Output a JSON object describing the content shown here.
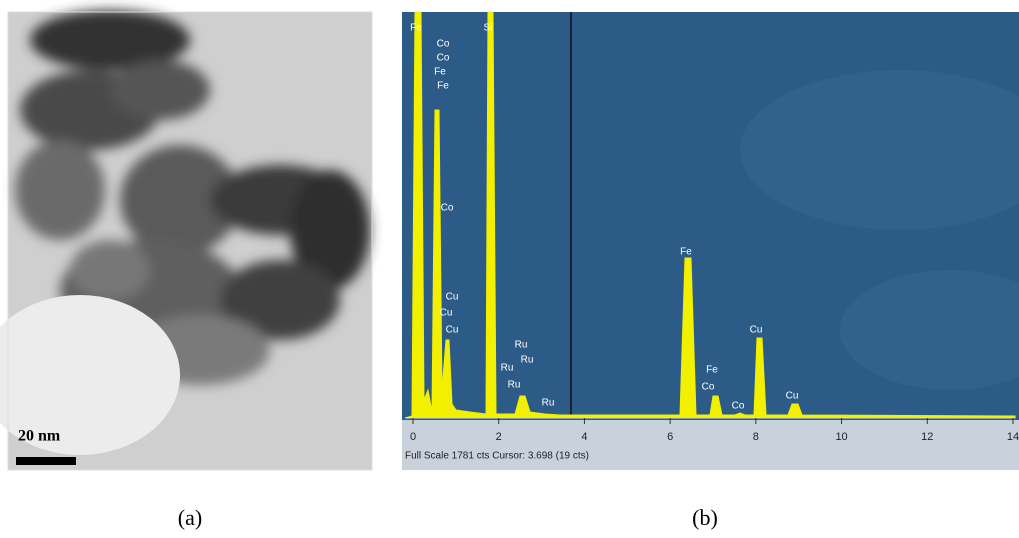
{
  "panel_a": {
    "scale_bar": "20 nm",
    "caption": "(a)"
  },
  "panel_b": {
    "caption": "(b)",
    "status": "Full Scale 1781 cts Cursor: 3.698 (19 cts)",
    "xlim": [
      0,
      14
    ],
    "xticks": [
      0,
      2,
      4,
      6,
      8,
      10,
      12,
      14
    ],
    "peak_labels": [
      "Fe",
      "Si",
      "Co",
      "Co",
      "Fe",
      "Fe",
      "Co",
      "Cu",
      "Cu",
      "Cu",
      "Ru",
      "Ru",
      "Ru",
      "Ru",
      "Ru",
      "Fe",
      "Fe",
      "Co",
      "Co",
      "Cu",
      "Cu"
    ]
  }
}
